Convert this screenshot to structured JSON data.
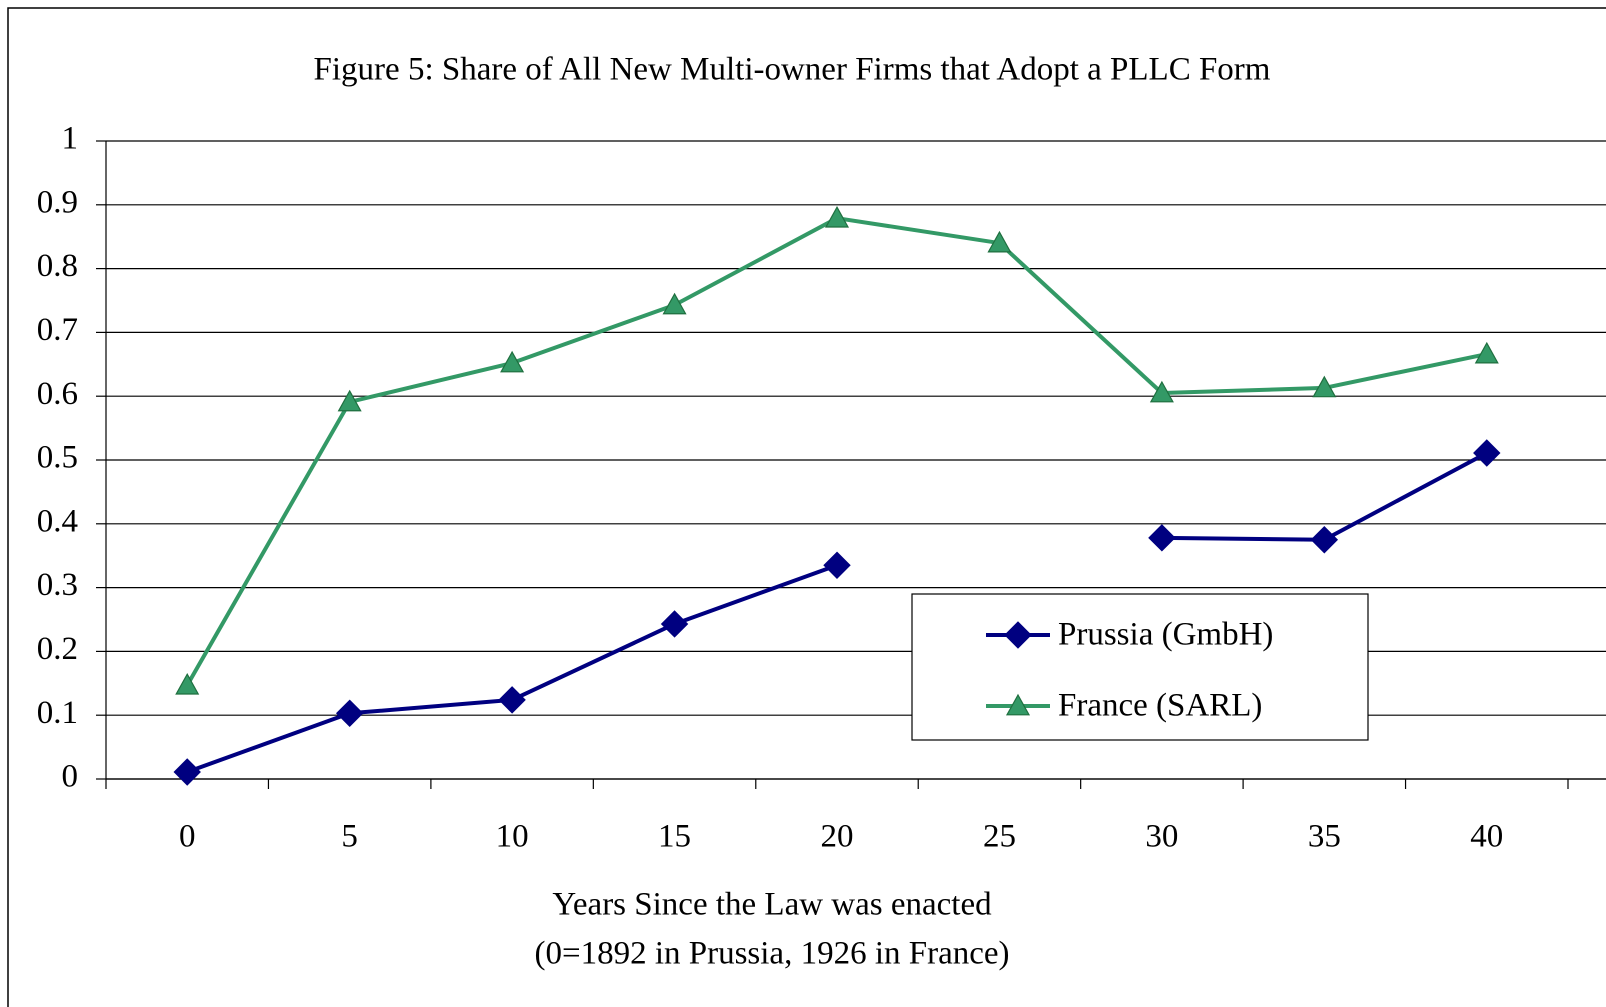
{
  "chart_data": {
    "type": "line",
    "title": "Figure 5: Share of All New Multi-owner Firms that Adopt a PLLC Form",
    "x_label": [
      "Years Since the Law was enacted",
      "(0=1892 in Prussia, 1926 in France)"
    ],
    "categories": [
      "0",
      "5",
      "10",
      "15",
      "20",
      "25",
      "30",
      "35",
      "40"
    ],
    "series": [
      {
        "name": "Prussia (GmbH)",
        "color": "#000080",
        "marker": "diamond",
        "values": [
          0.011,
          0.103,
          0.124,
          0.243,
          0.335,
          null,
          0.378,
          0.375,
          0.511
        ]
      },
      {
        "name": "France (SARL)",
        "color": "#339966",
        "marker": "triangle",
        "values": [
          0.147,
          0.591,
          0.652,
          0.743,
          0.879,
          0.84,
          0.605,
          0.613,
          0.666
        ]
      }
    ],
    "ylim": [
      0,
      1
    ],
    "yticks": [
      0,
      0.1,
      0.2,
      0.3,
      0.4,
      0.5,
      0.6,
      0.7,
      0.8,
      0.9,
      1
    ],
    "grid": true,
    "legend": "lower right"
  }
}
